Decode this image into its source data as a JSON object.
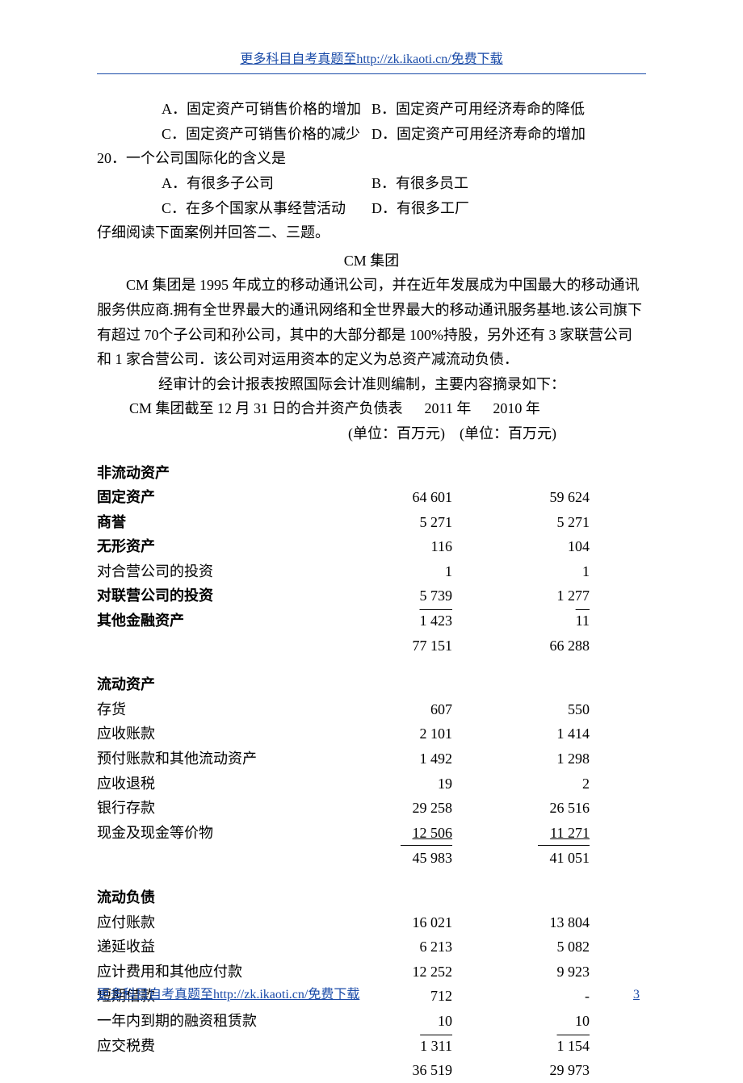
{
  "header": {
    "link": "更多科目自考真题至http://zk.ikaoti.cn/免费下载"
  },
  "footer": {
    "link": "更多科目自考真题至http://zk.ikaoti.cn/免费下载",
    "page": "3"
  },
  "q19": {
    "a": "A．固定资产可销售价格的增加",
    "b": "B．固定资产可用经济寿命的降低",
    "c": "C．固定资产可销售价格的减少",
    "d": "D．固定资产可用经济寿命的增加"
  },
  "q20": {
    "stem": "20．一个公司国际化的含义是",
    "a": "A．有很多子公司",
    "b": "B．有很多员工",
    "c": "C．在多个国家从事经营活动",
    "d": "D．有很多工厂"
  },
  "instr": "仔细阅读下面案例并回答二、三题。",
  "case_title": "CM 集团",
  "paras": {
    "p1": "CM 集团是 1995 年成立的移动通讯公司，并在近年发展成为中国最大的移动通讯服务供应商.拥有全世界最大的通讯网络和全世界最大的移动通讯服务基地.该公司旗下有超过 70个子公司和孙公司，其中的大部分都是 100%持股，另外还有 3 家联营公司和 1 家合营公司．该公司对运用资本的定义为总资产减流动负债．",
    "p2": "经审计的会计报表按照国际会计准则编制，主要内容摘录如下：",
    "p3_pre": "CM 集团截至 12 月 31 日的合并资产负债表",
    "p3_y1": "2011 年",
    "p3_y2": "2010 年",
    "units1": "(单位：百万元)",
    "units2": "(单位：百万元)"
  },
  "sections": {
    "nca_head": "非流动资产",
    "ca_head": "流动资产",
    "cl_head": "流动负债"
  },
  "nca_rows": [
    {
      "label": "固定资产",
      "y1": "64 601",
      "y2": "59 624",
      "bold": true
    },
    {
      "label": "商誉",
      "y1": "5 271",
      "y2": "5 271",
      "bold": true
    },
    {
      "label": "无形资产",
      "y1": "116",
      "y2": "104",
      "bold": true
    },
    {
      "label": "对合营公司的投资",
      "y1": "1",
      "y2": "1",
      "bold": false
    },
    {
      "label": "对联营公司的投资",
      "y1": "5 739",
      "y2": "1 277",
      "bold": true
    },
    {
      "label": "其他金融资产",
      "y1": "1 423",
      "y2": "11",
      "bold": true,
      "underline": true
    }
  ],
  "nca_total": {
    "y1": "77 151",
    "y2": "66 288"
  },
  "ca_rows": [
    {
      "label": "存货",
      "y1": "607",
      "y2": "550"
    },
    {
      "label": "应收账款",
      "y1": "2 101",
      "y2": "1 414"
    },
    {
      "label": "预付账款和其他流动资产",
      "y1": "1 492",
      "y2": "1 298"
    },
    {
      "label": "应收退税",
      "y1": "19",
      "y2": "2"
    },
    {
      "label": "银行存款",
      "y1": "29 258",
      "y2": "26 516"
    },
    {
      "label": "现金及现金等价物",
      "y1": "12 506",
      "y2": "11 271",
      "dbl": true
    }
  ],
  "ca_total": {
    "y1": "45 983",
    "y2": "41 051"
  },
  "cl_rows": [
    {
      "label": "应付账款",
      "y1": "16 021",
      "y2": "13 804"
    },
    {
      "label": "递延收益",
      "y1": "6 213",
      "y2": "5 082"
    },
    {
      "label": "应计费用和其他应付款",
      "y1": "12 252",
      "y2": "9 923"
    },
    {
      "label": "短期借款",
      "y1": "712",
      "y2": "-"
    },
    {
      "label": "一年内到期的融资租赁款",
      "y1": "10",
      "y2": "10"
    },
    {
      "label": "应交税费",
      "y1": "1 311",
      "y2": "1 154",
      "underline": true
    }
  ],
  "cl_total": {
    "y1": "36 519",
    "y2": "29 973"
  }
}
